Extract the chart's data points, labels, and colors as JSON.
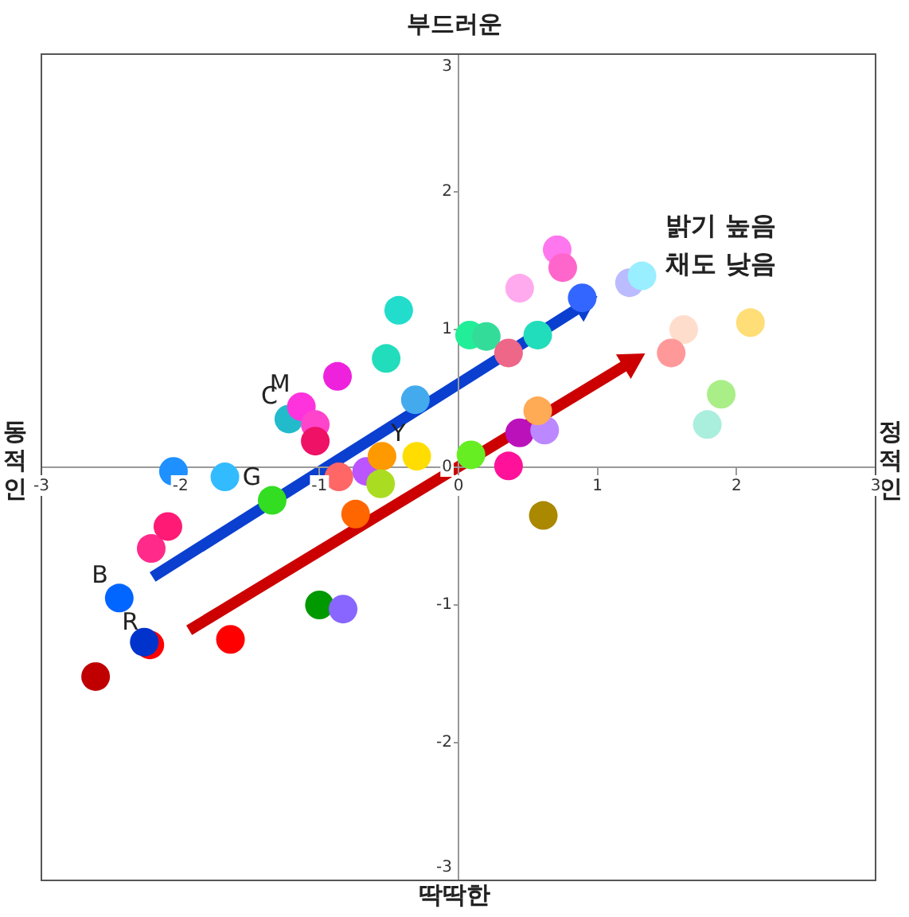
{
  "chart_data": {
    "type": "scatter",
    "title": "부드러운",
    "xlabel": "딱딱한",
    "ylabel": "동적인",
    "y2label": "정적인",
    "xlim": [
      -3,
      3
    ],
    "ylim": [
      -3,
      3
    ],
    "xticks": [
      -3,
      -2,
      -1,
      0,
      1,
      2,
      3
    ],
    "yticks": [
      -3,
      -2,
      -1,
      0,
      1,
      2,
      3
    ],
    "grid": false,
    "legend": false,
    "marker": "circle",
    "x": [
      -2.61,
      -2.22,
      -2.26,
      -1.64,
      -2.44,
      -2.21,
      -2.09,
      -2.05,
      -1.68,
      -1.34,
      -1.22,
      -1.13,
      -1.03,
      -1.03,
      -0.87,
      -0.52,
      -0.43,
      -0.31,
      -0.86,
      -0.66,
      -0.55,
      -0.56,
      -0.74,
      -0.3,
      -1.0,
      -0.83,
      0.08,
      0.2,
      0.36,
      0.57,
      0.09,
      0.44,
      0.62,
      0.57,
      0.36,
      0.61,
      0.44,
      0.71,
      0.75,
      0.89,
      1.23,
      1.32,
      1.62,
      1.53,
      2.1,
      1.89,
      1.79
    ],
    "values": [
      -1.52,
      -1.29,
      -1.27,
      -1.25,
      -0.95,
      -0.59,
      -0.43,
      -0.03,
      -0.07,
      -0.24,
      0.35,
      0.44,
      0.31,
      0.19,
      0.66,
      0.79,
      1.14,
      0.49,
      -0.07,
      -0.03,
      0.08,
      -0.12,
      -0.34,
      0.08,
      -1.0,
      -1.03,
      0.96,
      0.95,
      0.83,
      0.96,
      0.09,
      0.25,
      0.27,
      0.41,
      0.01,
      -0.35,
      1.3,
      1.58,
      1.45,
      1.23,
      1.34,
      1.39,
      1.0,
      0.83,
      1.05,
      0.53,
      0.31
    ],
    "colors": [
      "#c00000",
      "#ff0000",
      "#0033cc",
      "#ff0000",
      "#0066ff",
      "#ff2a8a",
      "#ff1a75",
      "#1e90ff",
      "#33bbff",
      "#33dd22",
      "#22bbcc",
      "#ff33dd",
      "#ff44cc",
      "#ee1166",
      "#ee22dd",
      "#22ddbb",
      "#22ddcc",
      "#44aaee",
      "#ff6666",
      "#bb55ff",
      "#ff9900",
      "#aadd22",
      "#ff6600",
      "#ffdd00",
      "#009900",
      "#8866ff",
      "#22ee99",
      "#33dd99",
      "#ee6688",
      "#22ddbb",
      "#66ee22",
      "#bb11bb",
      "#bb88ff",
      "#ffaa55",
      "#ff1199",
      "#aa8800",
      "#ffaaee",
      "#ff77ee",
      "#ff66cc",
      "#3366ff",
      "#bbbbff",
      "#99eeff",
      "#ffddcc",
      "#ff9999",
      "#ffdd77",
      "#aaee88",
      "#aaeedd"
    ],
    "annotations": [
      {
        "text": "B",
        "x": -2.44,
        "y": -0.95
      },
      {
        "text": "R",
        "x": -2.22,
        "y": -1.29
      },
      {
        "text": "G",
        "x": -1.34,
        "y": -0.24
      },
      {
        "text": "C",
        "x": -1.22,
        "y": 0.35
      },
      {
        "text": "M",
        "x": -1.13,
        "y": 0.44
      },
      {
        "text": "Y",
        "x": -0.3,
        "y": 0.08
      },
      "밝기 높음 채도 낮음"
    ]
  }
}
